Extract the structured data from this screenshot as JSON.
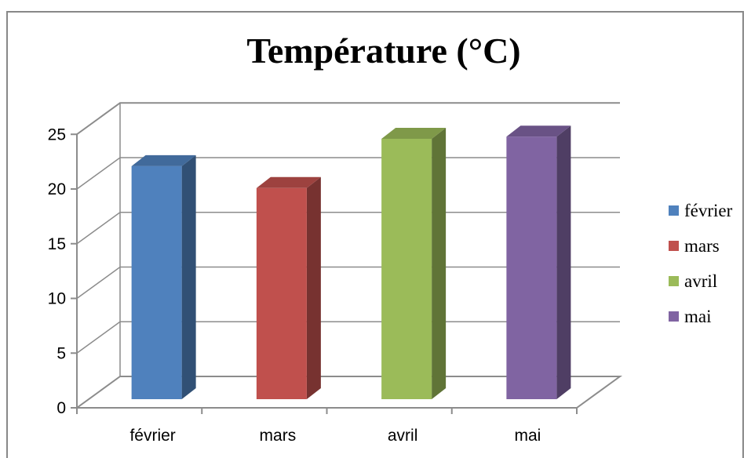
{
  "chart_data": {
    "type": "bar",
    "title": "Température (°C)",
    "categories": [
      "février",
      "mars",
      "avril",
      "mai"
    ],
    "values": [
      21.3,
      19.3,
      23.8,
      24
    ],
    "colors": [
      "#4f81bd",
      "#c0504d",
      "#9bbb59",
      "#8064a2"
    ],
    "ylim": [
      0,
      25
    ],
    "yticks": [
      0,
      5,
      10,
      15,
      20,
      25
    ],
    "grid": true,
    "three_d": true,
    "legend": {
      "position": "right",
      "entries": [
        "février",
        "mars",
        "avril",
        "mai"
      ]
    }
  }
}
